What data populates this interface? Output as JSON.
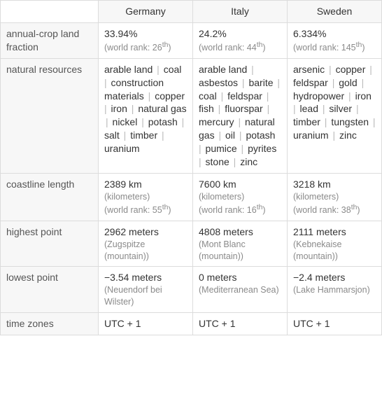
{
  "headers": {
    "corner": "",
    "cols": [
      "Germany",
      "Italy",
      "Sweden"
    ]
  },
  "rows": [
    {
      "label": "annual-crop land fraction",
      "type": "value_with_rank",
      "cells": [
        {
          "value": "33.94%",
          "rank_prefix": "(world rank: 26",
          "rank_suffix": ")"
        },
        {
          "value": "24.2%",
          "rank_prefix": "(world rank: 44",
          "rank_suffix": ")"
        },
        {
          "value": "6.334%",
          "rank_prefix": "(world rank: 145",
          "rank_suffix": ")"
        }
      ]
    },
    {
      "label": "natural resources",
      "type": "resources",
      "cells": [
        {
          "items": [
            "arable land",
            "coal",
            "construction materials",
            "copper",
            "iron",
            "natural gas",
            "nickel",
            "potash",
            "salt",
            "timber",
            "uranium"
          ]
        },
        {
          "items": [
            "arable land",
            "asbestos",
            "barite",
            "coal",
            "feldspar",
            "fish",
            "fluorspar",
            "mercury",
            "natural gas",
            "oil",
            "potash",
            "pumice",
            "pyrites",
            "stone",
            "zinc"
          ]
        },
        {
          "items": [
            "arsenic",
            "copper",
            "feldspar",
            "gold",
            "hydropower",
            "iron",
            "lead",
            "silver",
            "timber",
            "tungsten",
            "uranium",
            "zinc"
          ]
        }
      ]
    },
    {
      "label": "coastline length",
      "type": "value_sub_rank",
      "cells": [
        {
          "value": "2389 km",
          "sub1": "(kilometers)",
          "rank_prefix": "(world rank: 55",
          "rank_suffix": ")"
        },
        {
          "value": "7600 km",
          "sub1": "(kilometers)",
          "rank_prefix": "(world rank: 16",
          "rank_suffix": ")"
        },
        {
          "value": "3218 km",
          "sub1": "(kilometers)",
          "rank_prefix": "(world rank: 38",
          "rank_suffix": ")"
        }
      ]
    },
    {
      "label": "highest point",
      "type": "value_sub",
      "cells": [
        {
          "value": "2962 meters",
          "sub1": "(Zugspitze (mountain))"
        },
        {
          "value": "4808 meters",
          "sub1": "(Mont Blanc (mountain))"
        },
        {
          "value": "2111 meters",
          "sub1": "(Kebnekaise (mountain))"
        }
      ]
    },
    {
      "label": "lowest point",
      "type": "value_sub",
      "cells": [
        {
          "value": "−3.54 meters",
          "sub1": "(Neuendorf bei Wilster)"
        },
        {
          "value": "0 meters",
          "sub1": "(Mediterranean Sea)"
        },
        {
          "value": "−2.4 meters",
          "sub1": "(Lake Hammarsjon)"
        }
      ]
    },
    {
      "label": "time zones",
      "type": "value",
      "cells": [
        {
          "value": "UTC + 1"
        },
        {
          "value": "UTC + 1"
        },
        {
          "value": "UTC + 1"
        }
      ]
    }
  ],
  "ordinal": "th",
  "separator": "|"
}
